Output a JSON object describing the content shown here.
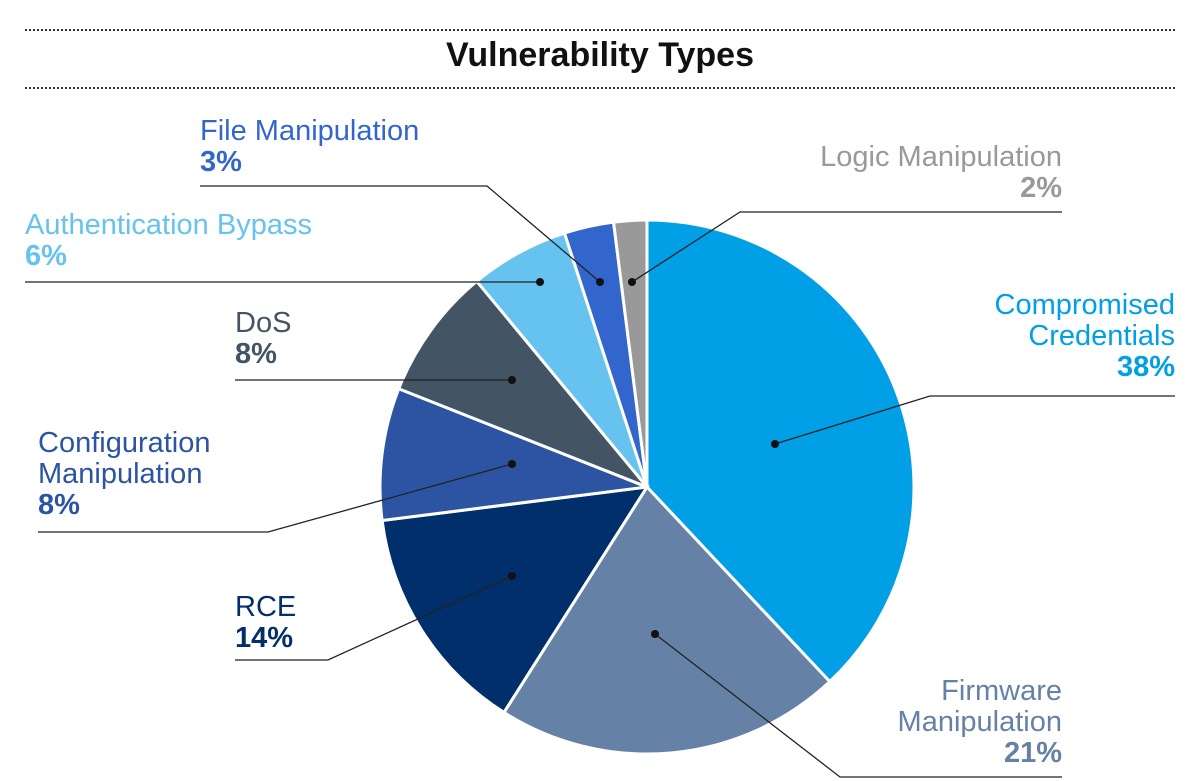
{
  "chart_data": {
    "type": "pie",
    "title": "Vulnerability Types",
    "start": "top",
    "direction": "clockwise",
    "slices": [
      {
        "label": "Compromised Credentials",
        "label_lines": [
          "Compromised",
          "Credentials"
        ],
        "value": 38,
        "pct_label": "38%",
        "color": "#009fe6"
      },
      {
        "label": "Firmware Manipulation",
        "label_lines": [
          "Firmware",
          "Manipulation"
        ],
        "value": 21,
        "pct_label": "21%",
        "color": "#6681a6"
      },
      {
        "label": "RCE",
        "label_lines": [
          "RCE"
        ],
        "value": 14,
        "pct_label": "14%",
        "color": "#002f6b"
      },
      {
        "label": "Configuration Manipulation",
        "label_lines": [
          "Configuration",
          "Manipulation"
        ],
        "value": 8,
        "pct_label": "8%",
        "color": "#2c54a3"
      },
      {
        "label": "DoS",
        "label_lines": [
          "DoS"
        ],
        "value": 8,
        "pct_label": "8%",
        "color": "#435464"
      },
      {
        "label": "Authentication Bypass",
        "label_lines": [
          "Authentication Bypass"
        ],
        "value": 6,
        "pct_label": "6%",
        "color": "#66c3f0"
      },
      {
        "label": "File Manipulation",
        "label_lines": [
          "File Manipulation"
        ],
        "value": 3,
        "pct_label": "3%",
        "color": "#3366cc"
      },
      {
        "label": "Logic Manipulation",
        "label_lines": [
          "Logic Manipulation"
        ],
        "value": 2,
        "pct_label": "2%",
        "color": "#999999"
      }
    ]
  }
}
